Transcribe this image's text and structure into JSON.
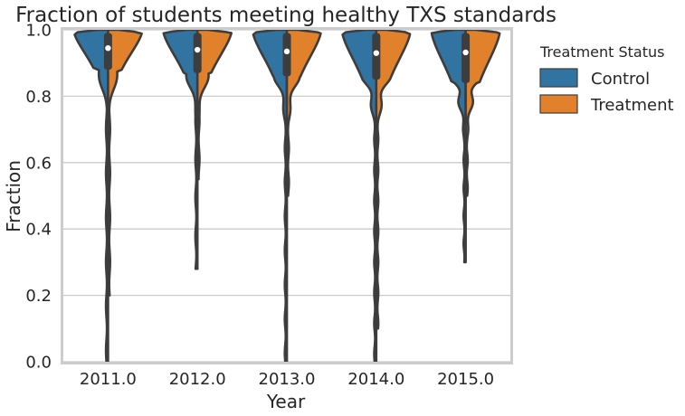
{
  "chart_data": {
    "type": "violin",
    "title": "Fraction of students meeting healthy TXS standards",
    "xlabel": "Year",
    "ylabel": "Fraction",
    "ylim": [
      0.0,
      1.0
    ],
    "yticks": [
      "0.0",
      "0.2",
      "0.4",
      "0.6",
      "0.8",
      "1.0"
    ],
    "categories": [
      "2011.0",
      "2012.0",
      "2013.0",
      "2014.0",
      "2015.0"
    ],
    "grid": true,
    "split": true,
    "legend": {
      "title": "Treatment Status",
      "placement": "outside-right",
      "entries": [
        {
          "name": "Control",
          "color": "#3274a1"
        },
        {
          "name": "Treatment",
          "color": "#e1812c"
        }
      ]
    },
    "series": [
      {
        "name": "Control",
        "color": "#3274a1",
        "min": [
          0.0,
          0.28,
          0.0,
          0.0,
          0.3
        ],
        "q1": [
          0.88,
          0.87,
          0.86,
          0.85,
          0.84
        ],
        "median": [
          0.945,
          0.94,
          0.935,
          0.93,
          0.932
        ],
        "q3": [
          0.99,
          0.99,
          0.99,
          0.99,
          0.99
        ],
        "max": [
          1.0,
          1.0,
          1.0,
          1.0,
          1.0
        ]
      },
      {
        "name": "Treatment",
        "color": "#e1812c",
        "min": [
          0.2,
          0.55,
          0.5,
          0.1,
          0.5
        ],
        "q1": [
          0.88,
          0.87,
          0.86,
          0.85,
          0.84
        ],
        "median": [
          0.945,
          0.94,
          0.935,
          0.93,
          0.932
        ],
        "q3": [
          0.99,
          0.99,
          0.99,
          0.99,
          0.99
        ],
        "max": [
          1.0,
          1.0,
          1.0,
          1.0,
          1.0
        ]
      }
    ]
  }
}
